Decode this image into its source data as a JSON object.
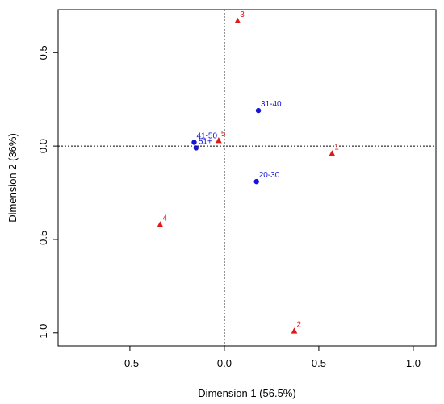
{
  "chart_data": {
    "type": "scatter",
    "title": "",
    "xlabel": "Dimension 1 (56.5%)",
    "ylabel": "Dimension 2 (36%)",
    "xlim": [
      -0.88,
      1.12
    ],
    "ylim": [
      -1.07,
      0.73
    ],
    "x_ticks": [
      {
        "value": -0.5,
        "label": "-0.5"
      },
      {
        "value": 0.0,
        "label": "0.0"
      },
      {
        "value": 0.5,
        "label": "0.5"
      },
      {
        "value": 1.0,
        "label": "1.0"
      }
    ],
    "y_ticks": [
      {
        "value": 0.5,
        "label": "0.5"
      },
      {
        "value": 0.0,
        "label": "0.0"
      },
      {
        "value": -0.5,
        "label": "-0.5"
      },
      {
        "value": -1.0,
        "label": "-1.0"
      }
    ],
    "reference_lines": {
      "x": 0,
      "y": 0,
      "style": "dotted"
    },
    "grid": false,
    "series": [
      {
        "marker": "circle",
        "color": "#1515d6",
        "points": [
          {
            "label": "31-40",
            "x": 0.18,
            "y": 0.19
          },
          {
            "label": "41-50",
            "x": -0.16,
            "y": 0.02
          },
          {
            "label": "51+",
            "x": -0.15,
            "y": -0.01
          },
          {
            "label": "20-30",
            "x": 0.17,
            "y": -0.19
          }
        ]
      },
      {
        "marker": "triangle",
        "color": "#e01818",
        "points": [
          {
            "label": "3",
            "x": 0.07,
            "y": 0.67
          },
          {
            "label": "5",
            "x": -0.03,
            "y": 0.03
          },
          {
            "label": "1",
            "x": 0.57,
            "y": -0.04
          },
          {
            "label": "4",
            "x": -0.34,
            "y": -0.42
          },
          {
            "label": "2",
            "x": 0.37,
            "y": -0.99
          }
        ]
      }
    ]
  }
}
